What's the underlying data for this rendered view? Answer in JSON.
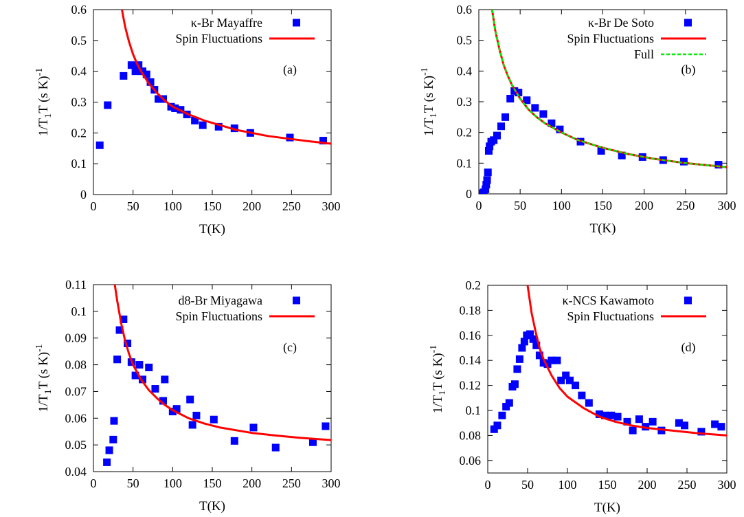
{
  "chart_data": [
    {
      "type": "scatter",
      "panel_label": "(a)",
      "xlabel": "T(K)",
      "ylabel": "1/T1T (s K)-1",
      "xlim": [
        0,
        300
      ],
      "ylim": [
        0,
        0.6
      ],
      "xticks": [
        0,
        50,
        100,
        150,
        200,
        250,
        300
      ],
      "yticks": [
        0,
        0.1,
        0.2,
        0.3,
        0.4,
        0.5,
        0.6
      ],
      "ytick_labels": [
        "0",
        "0.1",
        "0.2",
        "0.3",
        "0.4",
        "0.5",
        "0.6"
      ],
      "grid": false,
      "legend_position": "top-right",
      "series": [
        {
          "name": "κ-Br Mayaffre",
          "kind": "points",
          "color": "#0000ff",
          "x": [
            8,
            18,
            38,
            48,
            53,
            57,
            62,
            67,
            72,
            77,
            82,
            88,
            98,
            103,
            110,
            118,
            128,
            138,
            158,
            178,
            198,
            248,
            290
          ],
          "y": [
            0.16,
            0.29,
            0.385,
            0.42,
            0.4,
            0.42,
            0.4,
            0.39,
            0.365,
            0.34,
            0.31,
            0.31,
            0.285,
            0.28,
            0.275,
            0.26,
            0.24,
            0.225,
            0.22,
            0.215,
            0.2,
            0.185,
            0.175
          ]
        },
        {
          "name": "Spin Fluctuations",
          "kind": "curve",
          "color": "#ff0000",
          "x": [
            36,
            40,
            45,
            50,
            55,
            60,
            70,
            80,
            90,
            100,
            120,
            140,
            160,
            180,
            200,
            220,
            250,
            275,
            300
          ],
          "y": [
            0.6,
            0.545,
            0.495,
            0.455,
            0.425,
            0.4,
            0.36,
            0.33,
            0.305,
            0.285,
            0.26,
            0.24,
            0.225,
            0.21,
            0.2,
            0.19,
            0.18,
            0.172,
            0.165
          ]
        }
      ]
    },
    {
      "type": "scatter",
      "panel_label": "(b)",
      "xlabel": "T(K)",
      "ylabel": "1/T1T (s K)-1",
      "xlim": [
        0,
        300
      ],
      "ylim": [
        0,
        0.6
      ],
      "xticks": [
        0,
        50,
        100,
        150,
        200,
        250,
        300
      ],
      "yticks": [
        0,
        0.1,
        0.2,
        0.3,
        0.4,
        0.5,
        0.6
      ],
      "ytick_labels": [
        "0",
        "0.1",
        "0.2",
        "0.3",
        "0.4",
        "0.5",
        "0.6"
      ],
      "grid": false,
      "legend_position": "top-right",
      "series": [
        {
          "name": "κ-Br De Soto",
          "kind": "points",
          "color": "#0000ff",
          "x": [
            2,
            4,
            6,
            8,
            9,
            10,
            11,
            12,
            13,
            15,
            18,
            22,
            27,
            32,
            38,
            43,
            48,
            58,
            68,
            78,
            88,
            98,
            123,
            148,
            173,
            198,
            223,
            248,
            290
          ],
          "y": [
            0.0,
            0.002,
            0.005,
            0.015,
            0.03,
            0.045,
            0.07,
            0.14,
            0.155,
            0.17,
            0.175,
            0.19,
            0.22,
            0.25,
            0.31,
            0.335,
            0.33,
            0.305,
            0.28,
            0.26,
            0.23,
            0.21,
            0.17,
            0.14,
            0.125,
            0.12,
            0.11,
            0.105,
            0.095
          ]
        },
        {
          "name": "Spin Fluctuations",
          "kind": "curve",
          "color": "#ff0000",
          "x": [
            16,
            20,
            25,
            30,
            35,
            40,
            50,
            60,
            70,
            80,
            100,
            120,
            150,
            180,
            210,
            250,
            300
          ],
          "y": [
            0.6,
            0.53,
            0.47,
            0.42,
            0.385,
            0.355,
            0.31,
            0.275,
            0.25,
            0.23,
            0.2,
            0.175,
            0.15,
            0.13,
            0.115,
            0.1,
            0.087
          ]
        },
        {
          "name": "Full",
          "kind": "curve-dashed",
          "color": "#00ee00",
          "x": [
            16,
            20,
            25,
            30,
            35,
            40,
            50,
            60,
            70,
            80,
            100,
            120,
            150,
            180,
            210,
            250,
            300
          ],
          "y": [
            0.6,
            0.53,
            0.47,
            0.42,
            0.385,
            0.355,
            0.31,
            0.275,
            0.25,
            0.23,
            0.2,
            0.175,
            0.15,
            0.13,
            0.115,
            0.1,
            0.087
          ]
        }
      ]
    },
    {
      "type": "scatter",
      "panel_label": "(c)",
      "xlabel": "T(K)",
      "ylabel": "1/T1T (s K)-1",
      "xlim": [
        0,
        300
      ],
      "ylim": [
        0.04,
        0.11
      ],
      "xticks": [
        0,
        50,
        100,
        150,
        200,
        250,
        300
      ],
      "yticks": [
        0.04,
        0.05,
        0.06,
        0.07,
        0.08,
        0.09,
        0.1,
        0.11
      ],
      "ytick_labels": [
        "0.04",
        "0.05",
        "0.06",
        "0.07",
        "0.08",
        "0.09",
        "0.1",
        "0.11"
      ],
      "grid": false,
      "legend_position": "top-right",
      "series": [
        {
          "name": "d8-Br Miyagawa",
          "kind": "points",
          "color": "#0000ff",
          "x": [
            17,
            20,
            25,
            26,
            30,
            33,
            38,
            43,
            48,
            53,
            58,
            62,
            70,
            78,
            88,
            90,
            100,
            105,
            122,
            125,
            130,
            152,
            178,
            202,
            230,
            277,
            293
          ],
          "y": [
            0.0435,
            0.048,
            0.052,
            0.059,
            0.082,
            0.093,
            0.097,
            0.088,
            0.081,
            0.076,
            0.08,
            0.0745,
            0.079,
            0.071,
            0.0665,
            0.0745,
            0.0625,
            0.0635,
            0.067,
            0.0575,
            0.061,
            0.0595,
            0.0515,
            0.0565,
            0.049,
            0.051,
            0.057
          ]
        },
        {
          "name": "Spin Fluctuations",
          "kind": "curve",
          "color": "#ff0000",
          "x": [
            27,
            30,
            35,
            40,
            45,
            50,
            60,
            70,
            80,
            90,
            100,
            120,
            140,
            160,
            180,
            200,
            230,
            260,
            300
          ],
          "y": [
            0.11,
            0.104,
            0.0955,
            0.089,
            0.084,
            0.08,
            0.0745,
            0.0705,
            0.0675,
            0.065,
            0.063,
            0.06,
            0.058,
            0.0565,
            0.0555,
            0.0545,
            0.0535,
            0.0527,
            0.0518
          ]
        }
      ]
    },
    {
      "type": "scatter",
      "panel_label": "(d)",
      "xlabel": "T(K)",
      "ylabel": "1/T1T (s K)-1",
      "xlim": [
        0,
        300
      ],
      "ylim": [
        0.05,
        0.2
      ],
      "xticks": [
        0,
        50,
        100,
        150,
        200,
        250,
        300
      ],
      "yticks": [
        0.06,
        0.08,
        0.1,
        0.12,
        0.14,
        0.16,
        0.18,
        0.2
      ],
      "ytick_labels": [
        "0.06",
        "0.08",
        "0.1",
        "0.12",
        "0.14",
        "0.16",
        "0.18",
        "0.2"
      ],
      "grid": false,
      "legend_position": "top-right",
      "series": [
        {
          "name": "κ-NCS Kawamoto",
          "kind": "points",
          "color": "#0000ff",
          "x": [
            8,
            12,
            18,
            23,
            27,
            31,
            34,
            37,
            40,
            43,
            46,
            49,
            53,
            57,
            61,
            65,
            70,
            75,
            80,
            87,
            92,
            98,
            103,
            110,
            118,
            127,
            140,
            147,
            155,
            163,
            175,
            182,
            190,
            198,
            207,
            218,
            240,
            247,
            268,
            285,
            293
          ],
          "y": [
            0.085,
            0.088,
            0.096,
            0.103,
            0.106,
            0.119,
            0.121,
            0.133,
            0.141,
            0.15,
            0.155,
            0.16,
            0.161,
            0.157,
            0.152,
            0.144,
            0.138,
            0.137,
            0.14,
            0.14,
            0.124,
            0.128,
            0.124,
            0.12,
            0.112,
            0.106,
            0.097,
            0.096,
            0.096,
            0.095,
            0.091,
            0.084,
            0.093,
            0.087,
            0.091,
            0.084,
            0.09,
            0.088,
            0.083,
            0.089,
            0.087
          ]
        },
        {
          "name": "Spin Fluctuations",
          "kind": "curve",
          "color": "#ff0000",
          "x": [
            50,
            55,
            60,
            65,
            70,
            80,
            90,
            100,
            120,
            140,
            160,
            180,
            200,
            230,
            260,
            300
          ],
          "y": [
            0.2,
            0.178,
            0.163,
            0.15,
            0.141,
            0.128,
            0.118,
            0.111,
            0.102,
            0.095,
            0.091,
            0.088,
            0.086,
            0.084,
            0.082,
            0.08
          ]
        }
      ]
    }
  ]
}
